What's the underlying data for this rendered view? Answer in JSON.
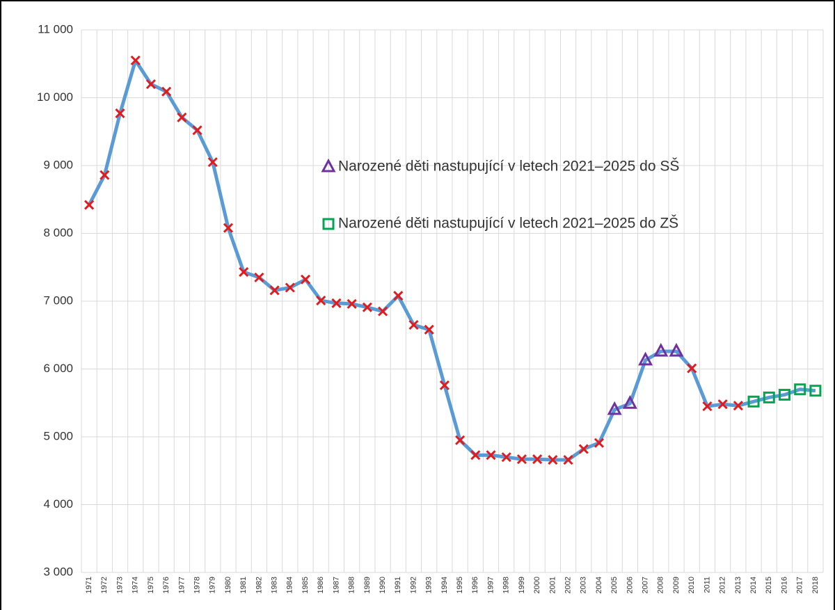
{
  "chart_data": {
    "type": "line",
    "categories": [
      "1971",
      "1972",
      "1973",
      "1974",
      "1975",
      "1976",
      "1977",
      "1978",
      "1979",
      "1980",
      "1981",
      "1982",
      "1983",
      "1984",
      "1985",
      "1986",
      "1987",
      "1988",
      "1989",
      "1990",
      "1991",
      "1992",
      "1993",
      "1994",
      "1995",
      "1996",
      "1997",
      "1998",
      "1999",
      "2000",
      "2001",
      "2002",
      "2003",
      "2004",
      "2005",
      "2006",
      "2007",
      "2008",
      "2009",
      "2010",
      "2011",
      "2012",
      "2013",
      "2014",
      "2015",
      "2016",
      "2017",
      "2018"
    ],
    "line_color": "#5b9bd5",
    "series": [
      {
        "color": "#e41a1c",
        "marker": "cross",
        "values": [
          8420,
          8860,
          9770,
          10550,
          10200,
          10090,
          9710,
          9520,
          9050,
          8080,
          7430,
          7350,
          7160,
          7200,
          7320,
          7010,
          6970,
          6960,
          6910,
          6850,
          7080,
          6650,
          6580,
          5760,
          4950,
          4730,
          4730,
          4700,
          4670,
          4670,
          4660,
          4660,
          4820,
          4910,
          null,
          null,
          null,
          null,
          null,
          6010,
          5450,
          5480,
          5460,
          null,
          null,
          null,
          null,
          null
        ]
      },
      {
        "name": "Narozené děti nastupující v letech 2021–2025 do SŠ",
        "color": "#7030a0",
        "marker": "triangle",
        "values": [
          null,
          null,
          null,
          null,
          null,
          null,
          null,
          null,
          null,
          null,
          null,
          null,
          null,
          null,
          null,
          null,
          null,
          null,
          null,
          null,
          null,
          null,
          null,
          null,
          null,
          null,
          null,
          null,
          null,
          null,
          null,
          null,
          null,
          null,
          5400,
          5490,
          6130,
          6260,
          6260,
          null,
          null,
          null,
          null,
          null,
          null,
          null,
          null,
          null
        ]
      },
      {
        "name": "Narozené děti nastupující v letech 2021–2025 do ZŠ",
        "color": "#00a651",
        "marker": "square",
        "values": [
          null,
          null,
          null,
          null,
          null,
          null,
          null,
          null,
          null,
          null,
          null,
          null,
          null,
          null,
          null,
          null,
          null,
          null,
          null,
          null,
          null,
          null,
          null,
          null,
          null,
          null,
          null,
          null,
          null,
          null,
          null,
          null,
          null,
          null,
          null,
          null,
          null,
          null,
          null,
          null,
          null,
          null,
          null,
          5520,
          5580,
          5620,
          5700,
          5680
        ]
      }
    ],
    "ylim": [
      3000,
      11000
    ],
    "yticks": [
      {
        "value": 3000,
        "label": "3 000"
      },
      {
        "value": 4000,
        "label": "4 000"
      },
      {
        "value": 5000,
        "label": "5 000"
      },
      {
        "value": 6000,
        "label": "6 000"
      },
      {
        "value": 7000,
        "label": "7 000"
      },
      {
        "value": 8000,
        "label": "8 000"
      },
      {
        "value": 9000,
        "label": "9 000"
      },
      {
        "value": 10000,
        "label": "10 000"
      },
      {
        "value": 11000,
        "label": "11 000"
      }
    ],
    "grid": true,
    "legend": "inside"
  }
}
